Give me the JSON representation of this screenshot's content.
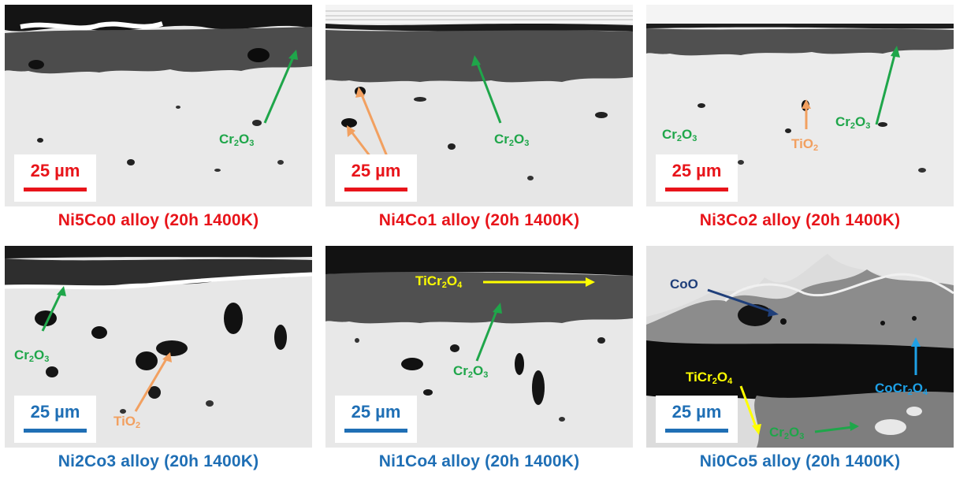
{
  "colors": {
    "red": "#e8141a",
    "blue": "#1f6fb5",
    "green": "#1fa64a",
    "orange": "#f2a060",
    "yellow": "#ffff00",
    "navy": "#1f3f7a",
    "sky": "#1ea0e6"
  },
  "scale": "25 µm",
  "panels": [
    {
      "caption": "Ni5Co0 alloy (20h 1400K)",
      "labels": [
        {
          "base": "Cr",
          "sub1": "2",
          "mid": "O",
          "sub2": "3"
        }
      ]
    },
    {
      "caption": "Ni4Co1 alloy (20h 1400K)",
      "labels": [
        {
          "base": "Cr",
          "sub1": "2",
          "mid": "O",
          "sub2": "3"
        }
      ]
    },
    {
      "caption": "Ni3Co2 alloy (20h 1400K)",
      "labels": [
        {
          "base": "Cr",
          "sub1": "2",
          "mid": "O",
          "sub2": "3"
        },
        {
          "base": "Cr",
          "sub1": "2",
          "mid": "O",
          "sub2": "3"
        },
        {
          "base": "TiO",
          "sub1": "2",
          "mid": "",
          "sub2": ""
        }
      ]
    },
    {
      "caption": "Ni2Co3 alloy (20h 1400K)",
      "labels": [
        {
          "base": "Cr",
          "sub1": "2",
          "mid": "O",
          "sub2": "3"
        },
        {
          "base": "TiO",
          "sub1": "2",
          "mid": "",
          "sub2": ""
        }
      ]
    },
    {
      "caption": "Ni1Co4 alloy (20h 1400K)",
      "labels": [
        {
          "base": "TiCr",
          "sub1": "2",
          "mid": "O",
          "sub2": "4"
        },
        {
          "base": "Cr",
          "sub1": "2",
          "mid": "O",
          "sub2": "3"
        }
      ]
    },
    {
      "caption": "Ni0Co5 alloy (20h 1400K)",
      "labels": [
        {
          "base": "CoO",
          "sub1": "",
          "mid": "",
          "sub2": ""
        },
        {
          "base": "TiCr",
          "sub1": "2",
          "mid": "O",
          "sub2": "4"
        },
        {
          "base": "CoCr",
          "sub1": "2",
          "mid": "O",
          "sub2": "4"
        },
        {
          "base": "Cr",
          "sub1": "2",
          "mid": "O",
          "sub2": "3"
        }
      ]
    }
  ]
}
